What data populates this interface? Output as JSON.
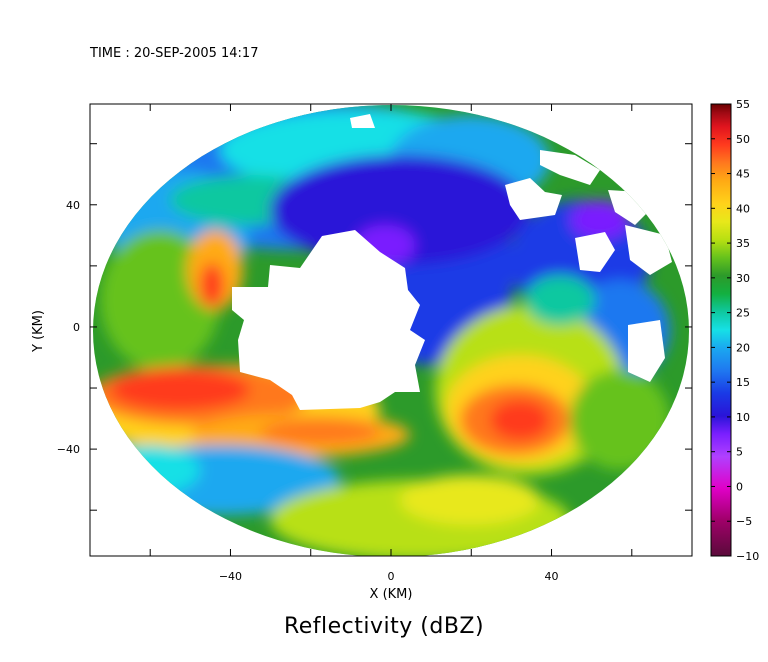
{
  "time_label": "TIME : 20-SEP-2005 14:17",
  "chart_data": {
    "type": "heatmap",
    "title": "Reflectivity (dBZ)",
    "xlabel": "X (KM)",
    "ylabel": "Y (KM)",
    "xlim": [
      -75,
      75
    ],
    "ylim": [
      -75,
      73
    ],
    "x_ticks": [
      -40,
      0,
      40
    ],
    "y_ticks": [
      40,
      0,
      -40
    ],
    "colorbar": {
      "min": -10,
      "max": 55,
      "ticks": [
        55,
        50,
        45,
        40,
        35,
        30,
        25,
        20,
        15,
        10,
        5,
        0,
        -5,
        -10
      ],
      "colors": [
        "#5a0a3a",
        "#a0006a",
        "#e000c8",
        "#b040ff",
        "#7a1fff",
        "#2a14d8",
        "#1a3ae6",
        "#1f78f0",
        "#1aa8f0",
        "#16e0e6",
        "#0fc8a0",
        "#13b040",
        "#2c9a2a",
        "#66c21c",
        "#b8e012",
        "#e8e81a",
        "#ffd21a",
        "#ffaa14",
        "#ff781e",
        "#ff3a1e",
        "#e0141e",
        "#a00a14",
        "#6a0000"
      ]
    },
    "radar_domain": {
      "center": [
        0,
        0
      ],
      "radius_km": 74
    },
    "no_data_regions": [
      "central echo-free region",
      "north-east gaps"
    ]
  }
}
